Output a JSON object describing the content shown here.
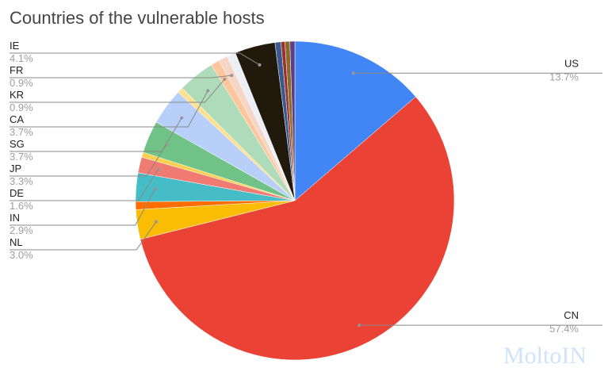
{
  "chart_data": {
    "type": "pie",
    "title": "Countries of the vulnerable hosts",
    "categories": [
      "US",
      "CN",
      "NL",
      null,
      "IN",
      "DE",
      null,
      "JP",
      "SG",
      null,
      "CA",
      "KR",
      "FR",
      null,
      "IE",
      null,
      null,
      null,
      null
    ],
    "values": [
      13.7,
      57.4,
      3.0,
      0.8,
      2.9,
      1.6,
      0.5,
      3.3,
      3.7,
      0.6,
      3.7,
      0.9,
      0.9,
      0.9,
      4.1,
      0.6,
      0.4,
      0.5,
      0.5
    ],
    "value_labels": [
      "13.7%",
      "57.4%",
      "3.0%",
      null,
      "2.9%",
      "1.6%",
      null,
      "3.3%",
      "3.7%",
      null,
      "3.7%",
      "0.9%",
      "0.9%",
      null,
      "4.1%",
      null,
      null,
      null,
      null
    ],
    "colors": [
      "#4285f4",
      "#ea4335",
      "#fbbc04",
      "#ff6d01",
      "#46bdc6",
      "#f07b72",
      "#fcd04f",
      "#71c287",
      "#b8cffa",
      "#fde293",
      "#aedcba",
      "#fdc69c",
      "#f4d5c6",
      "#eceff5",
      "#21190b",
      "#3b5b8f",
      "#9c2f2c",
      "#8a6b2a",
      "#5c3f86"
    ]
  },
  "watermark": "MoltoIN"
}
